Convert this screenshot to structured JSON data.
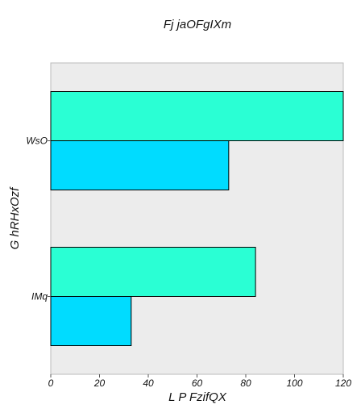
{
  "chart_data": {
    "type": "bar",
    "orientation": "horizontal",
    "title": "Fj jaOFgIXm",
    "xlabel": "L P FzifQX",
    "ylabel": "G hRHxOzf",
    "categories": [
      "WsO",
      "IMq"
    ],
    "series": [
      {
        "values": [
          120,
          84
        ],
        "color": "#2affd4"
      },
      {
        "values": [
          73,
          33
        ],
        "color": "#00dcff"
      }
    ],
    "xlim": [
      0,
      120
    ],
    "xticks": [
      0,
      20,
      40,
      60,
      80,
      100,
      120
    ],
    "plot_background": "#ececec",
    "grid": false
  }
}
